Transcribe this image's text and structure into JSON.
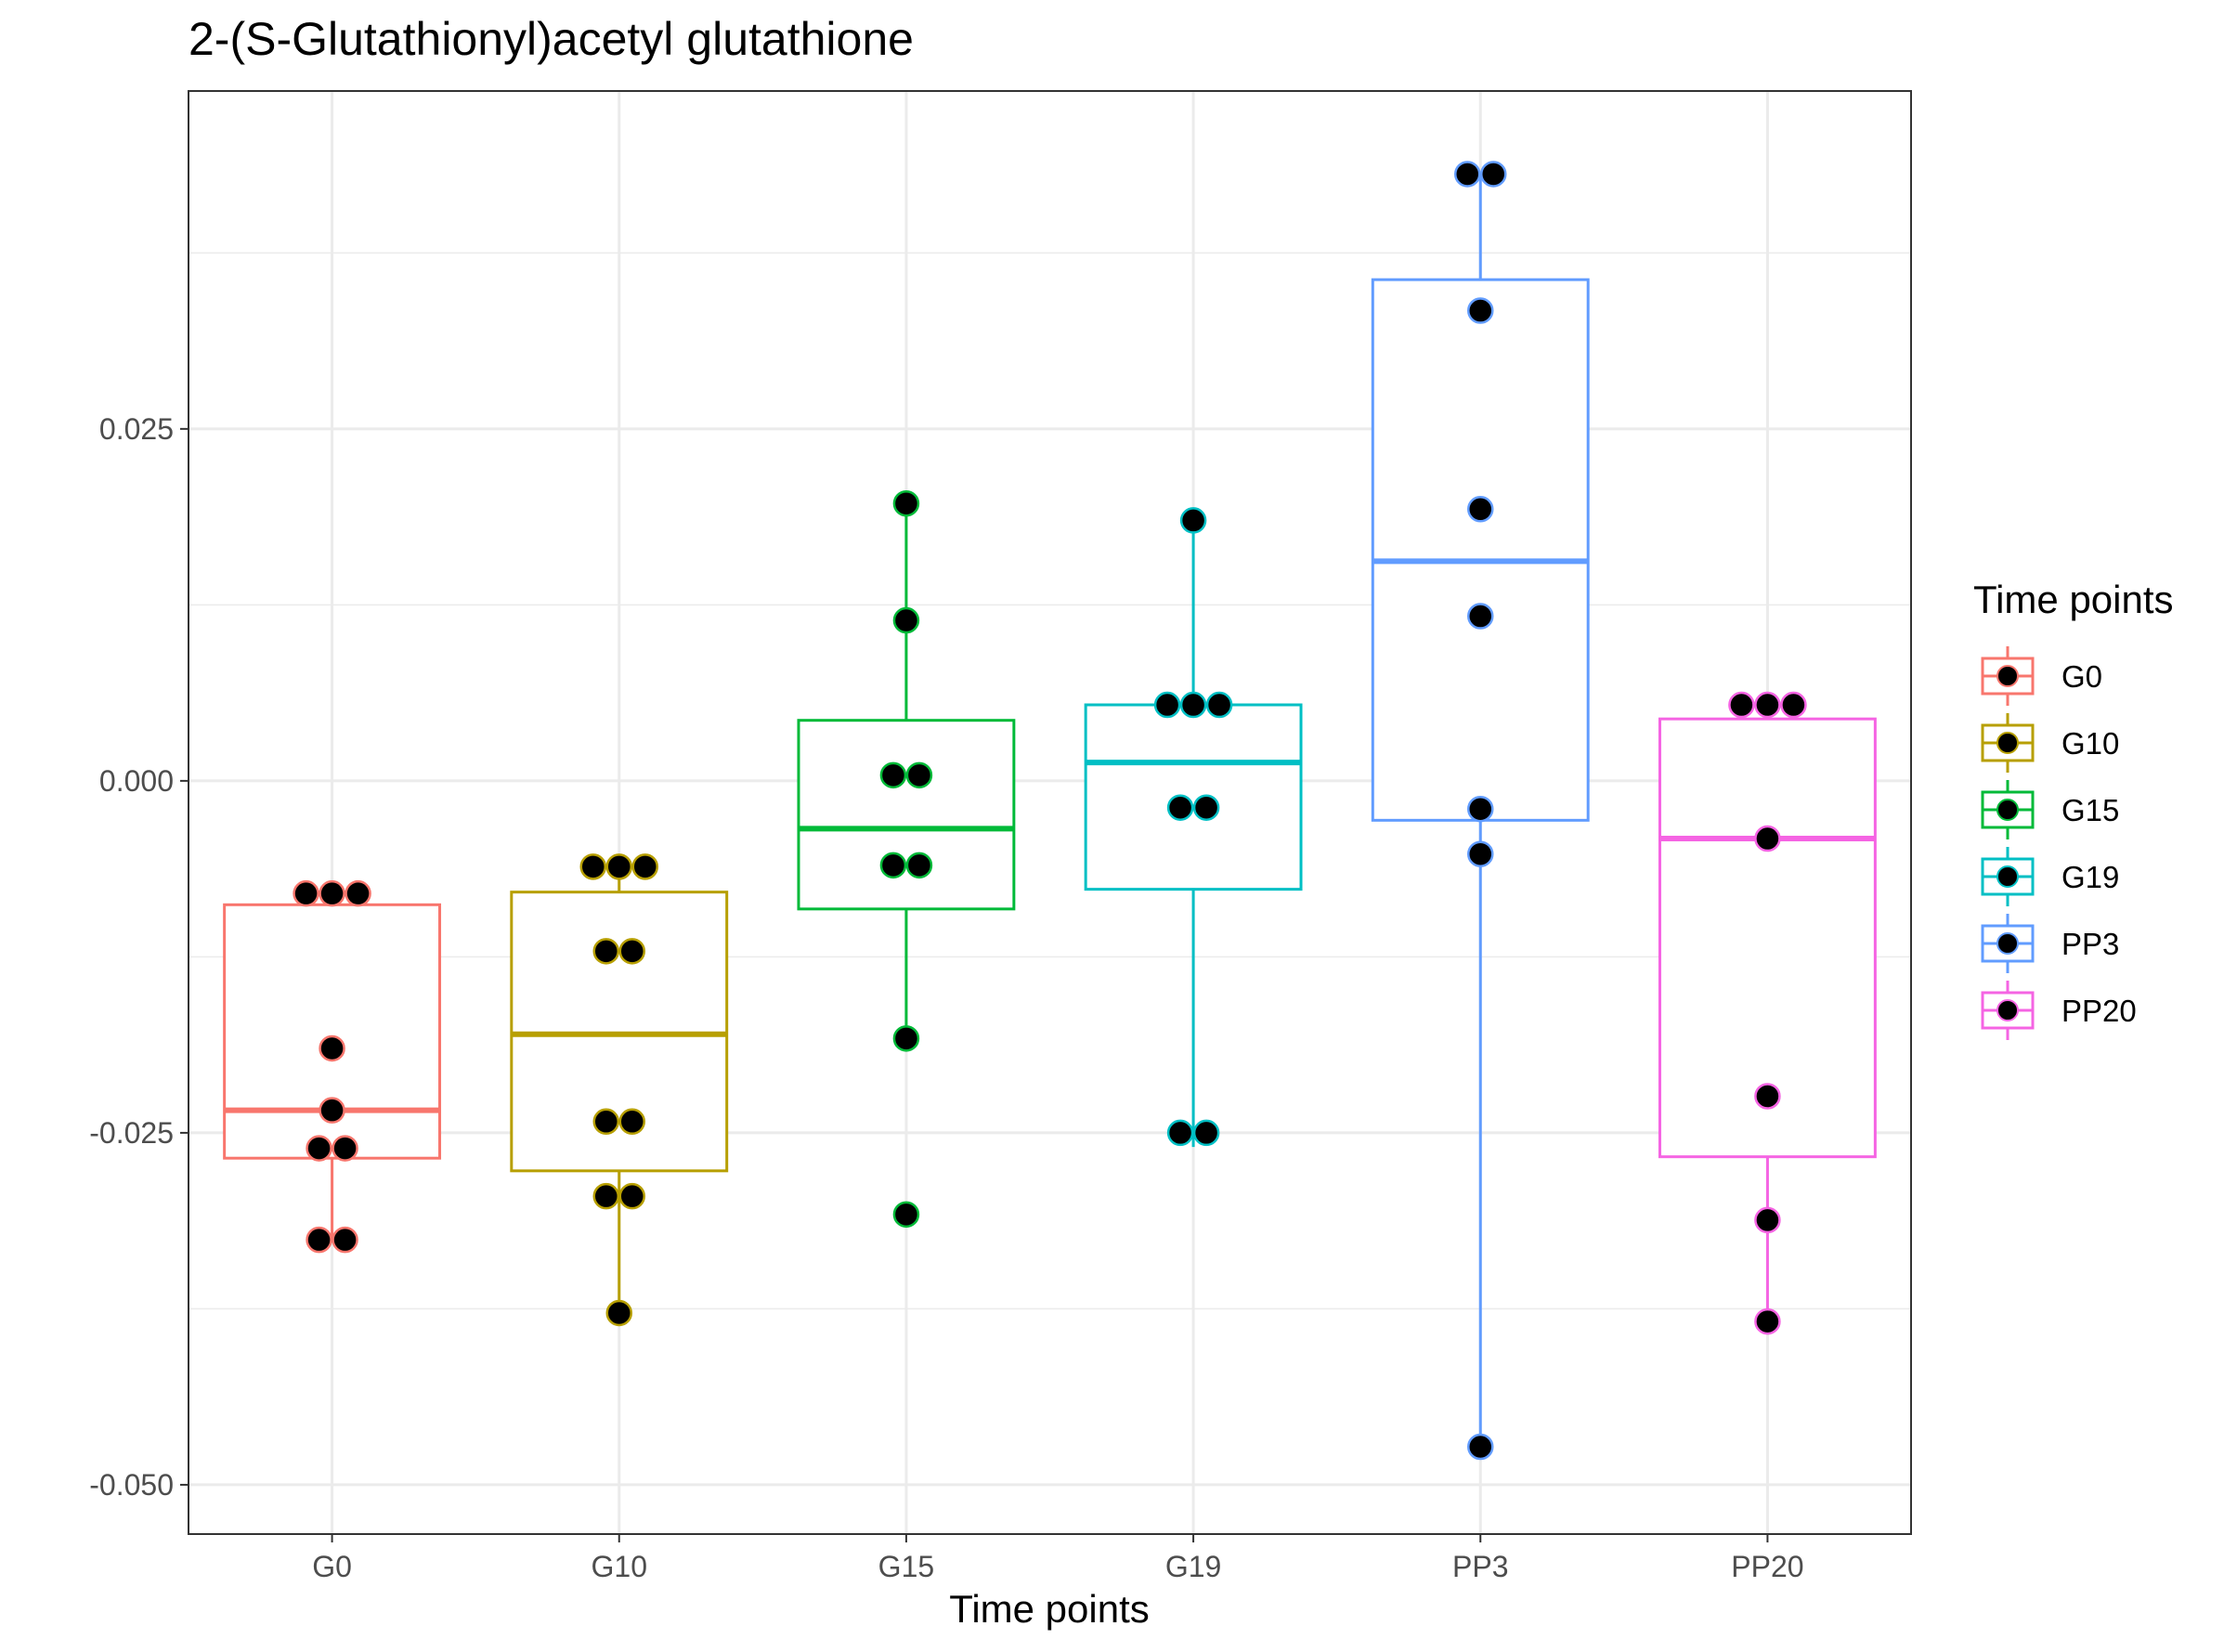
{
  "chart_data": {
    "type": "box",
    "title": "2-(S-Glutathionyl)acetyl glutathione",
    "xlabel": "Time points",
    "ylabel": "",
    "ylim": [
      -0.0535,
      0.049
    ],
    "yticks": [
      "0.025",
      "0.000",
      "-0.025",
      "-0.050"
    ],
    "ytick_values": [
      0.025,
      0.0,
      -0.025,
      -0.05
    ],
    "categories": [
      "G0",
      "G10",
      "G15",
      "G19",
      "PP3",
      "PP20"
    ],
    "legend": {
      "title": "Time points",
      "position": "right"
    },
    "grid": true,
    "series": [
      {
        "name": "G0",
        "color": "#F8766D",
        "box": {
          "whisker_low": -0.0326,
          "q1": -0.0268,
          "median": -0.0234,
          "q3": -0.0088,
          "whisker_high": -0.008
        },
        "points": [
          -0.008,
          -0.008,
          -0.008,
          -0.019,
          -0.0234,
          -0.0261,
          -0.0261,
          -0.0326,
          -0.0326
        ]
      },
      {
        "name": "G10",
        "color": "#B79F00",
        "box": {
          "whisker_low": -0.0378,
          "q1": -0.0277,
          "median": -0.018,
          "q3": -0.0079,
          "whisker_high": -0.0061
        },
        "points": [
          -0.0061,
          -0.0061,
          -0.0061,
          -0.0121,
          -0.0121,
          -0.0242,
          -0.0242,
          -0.0295,
          -0.0295,
          -0.0378
        ]
      },
      {
        "name": "G15",
        "color": "#00BA38",
        "box": {
          "whisker_low": -0.0183,
          "q1": -0.0091,
          "median": -0.0034,
          "q3": 0.0043,
          "whisker_high": 0.0197
        },
        "points": [
          0.0197,
          0.0114,
          0.0004,
          0.0004,
          -0.006,
          -0.006,
          -0.0183,
          -0.0308
        ]
      },
      {
        "name": "G19",
        "color": "#00BFC4",
        "box": {
          "whisker_low": -0.026,
          "q1": -0.0077,
          "median": 0.0013,
          "q3": 0.0054,
          "whisker_high": 0.0185
        },
        "points": [
          0.0185,
          0.0054,
          0.0054,
          0.0054,
          -0.0019,
          -0.0019,
          -0.025,
          -0.025
        ]
      },
      {
        "name": "PP3",
        "color": "#619CFF",
        "box": {
          "whisker_low": -0.0473,
          "q1": -0.0028,
          "median": 0.0156,
          "q3": 0.0356,
          "whisker_high": 0.0431
        },
        "points": [
          0.0431,
          0.0431,
          0.0334,
          0.0193,
          0.0117,
          -0.002,
          -0.0052,
          -0.0473
        ]
      },
      {
        "name": "PP20",
        "color": "#F564E3",
        "box": {
          "whisker_low": -0.038,
          "q1": -0.0267,
          "median": -0.0041,
          "q3": 0.0044,
          "whisker_high": 0.0054
        },
        "points": [
          0.0054,
          0.0054,
          0.0054,
          -0.0041,
          -0.0224,
          -0.0312,
          -0.0384
        ]
      }
    ]
  }
}
